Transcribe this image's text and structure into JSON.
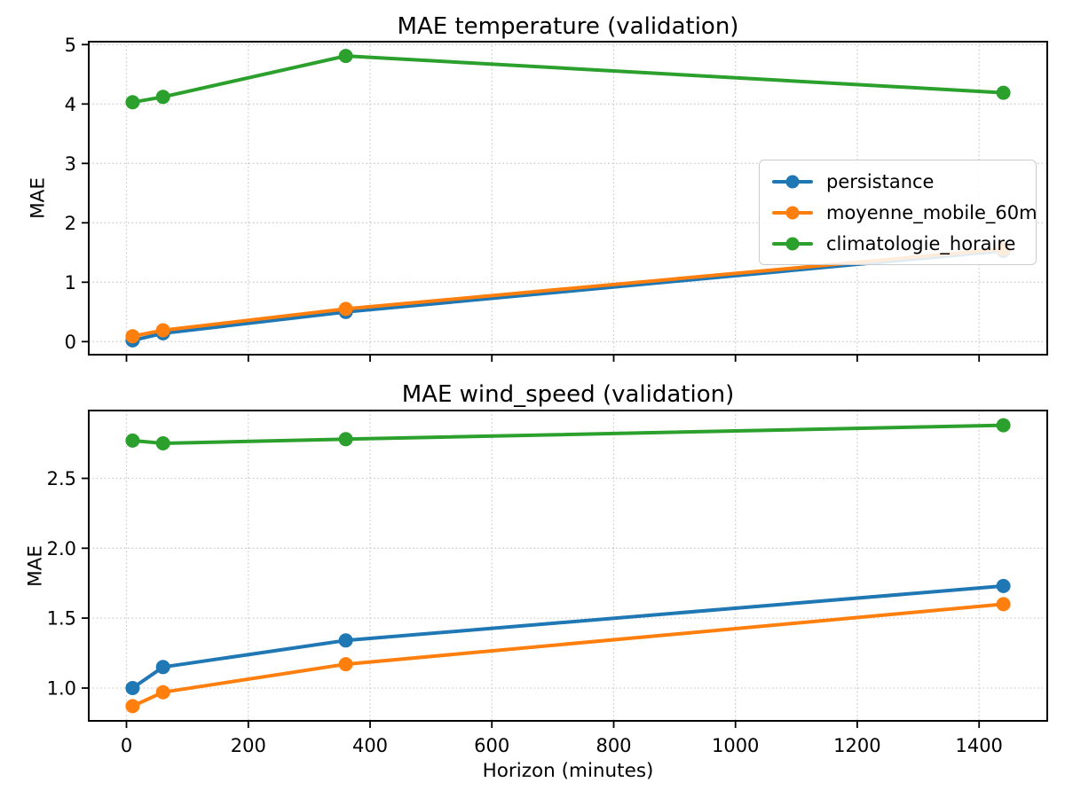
{
  "figure": {
    "background": "#ffffff",
    "text_color": "#000000",
    "grid_color": "#cdcdcd",
    "spine_color": "#000000"
  },
  "chart_data": [
    {
      "type": "line",
      "title": "MAE temperature (validation)",
      "ylabel": "MAE",
      "xlabel": "",
      "x": [
        10,
        60,
        360,
        1440
      ],
      "xlim": [
        -62,
        1512
      ],
      "xticks": [
        0,
        200,
        400,
        600,
        800,
        1000,
        1200,
        1400
      ],
      "xtick_labels": [
        "0",
        "200",
        "400",
        "600",
        "800",
        "1000",
        "1200",
        "1400"
      ],
      "show_xtick_labels": false,
      "ylim": [
        -0.22,
        5.05
      ],
      "yticks": [
        0,
        1,
        2,
        3,
        4,
        5
      ],
      "ytick_labels": [
        "0",
        "1",
        "2",
        "3",
        "4",
        "5"
      ],
      "grid": true,
      "series": [
        {
          "name": "persistance",
          "color": "#1f77b4",
          "values": [
            0.02,
            0.14,
            0.5,
            1.53
          ]
        },
        {
          "name": "moyenne_mobile_60m",
          "color": "#ff7f0e",
          "values": [
            0.09,
            0.19,
            0.55,
            1.56
          ]
        },
        {
          "name": "climatologie_horaire",
          "color": "#2ca02c",
          "values": [
            4.03,
            4.12,
            4.81,
            4.19
          ]
        }
      ],
      "legend": {
        "position": "center-right",
        "items": [
          {
            "label": "persistance",
            "color": "#1f77b4"
          },
          {
            "label": "moyenne_mobile_60m",
            "color": "#ff7f0e"
          },
          {
            "label": "climatologie_horaire",
            "color": "#2ca02c"
          }
        ]
      }
    },
    {
      "type": "line",
      "title": "MAE wind_speed (validation)",
      "ylabel": "MAE",
      "xlabel": "Horizon (minutes)",
      "x": [
        10,
        60,
        360,
        1440
      ],
      "xlim": [
        -62,
        1512
      ],
      "xticks": [
        0,
        200,
        400,
        600,
        800,
        1000,
        1200,
        1400
      ],
      "xtick_labels": [
        "0",
        "200",
        "400",
        "600",
        "800",
        "1000",
        "1200",
        "1400"
      ],
      "show_xtick_labels": true,
      "ylim": [
        0.765,
        2.985
      ],
      "yticks": [
        1.0,
        1.5,
        2.0,
        2.5
      ],
      "ytick_labels": [
        "1.0",
        "1.5",
        "2.0",
        "2.5"
      ],
      "grid": true,
      "series": [
        {
          "name": "persistance",
          "color": "#1f77b4",
          "values": [
            1.0,
            1.15,
            1.34,
            1.73
          ]
        },
        {
          "name": "moyenne_mobile_60m",
          "color": "#ff7f0e",
          "values": [
            0.87,
            0.97,
            1.17,
            1.6
          ]
        },
        {
          "name": "climatologie_horaire",
          "color": "#2ca02c",
          "values": [
            2.77,
            2.75,
            2.78,
            2.88
          ]
        }
      ],
      "legend": null
    }
  ]
}
